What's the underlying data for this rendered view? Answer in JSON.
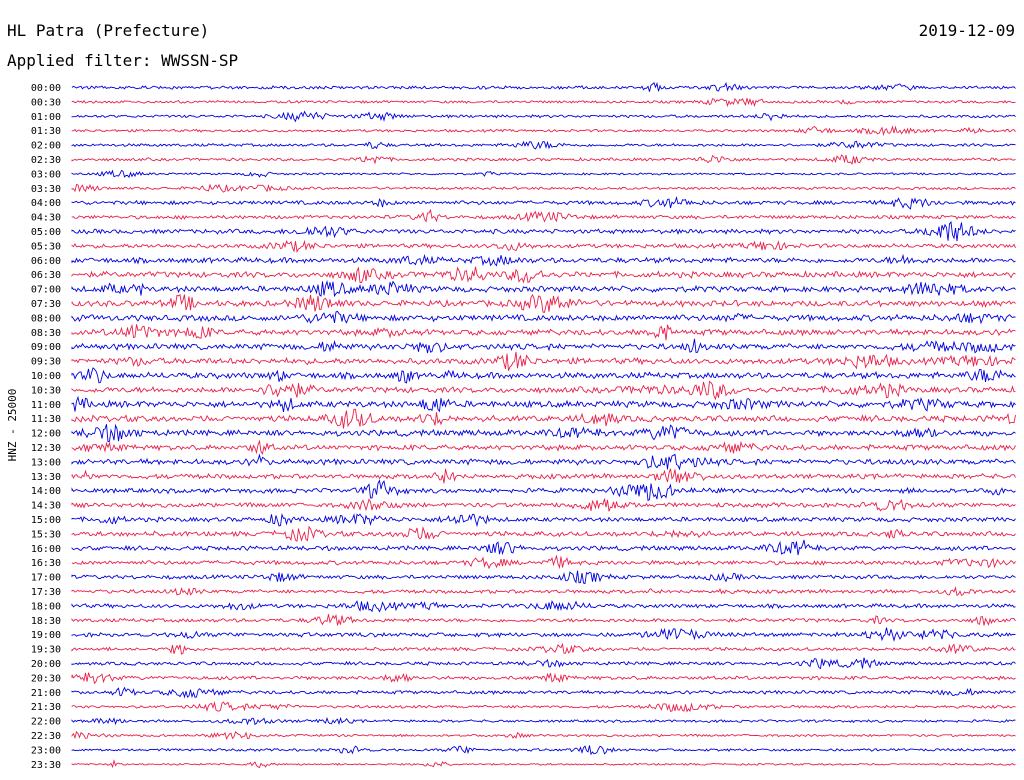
{
  "header": {
    "station": "HL Patra (Prefecture)",
    "date": "2019-12-09",
    "filter": "Applied filter: WWSSN-SP"
  },
  "chart_data": {
    "type": "line",
    "title": "HL Patra (Prefecture)",
    "subtitle": "Applied filter: WWSSN-SP",
    "ylabel": "HNZ - 25000",
    "xlabel": "",
    "trace_colors": [
      "#0000e0",
      "#e8204a"
    ],
    "rows": [
      {
        "label": "00:00",
        "activity": 0.35
      },
      {
        "label": "00:30",
        "activity": 0.25
      },
      {
        "label": "01:00",
        "activity": 0.3
      },
      {
        "label": "01:30",
        "activity": 0.25
      },
      {
        "label": "02:00",
        "activity": 0.3
      },
      {
        "label": "02:30",
        "activity": 0.3
      },
      {
        "label": "03:00",
        "activity": 0.15
      },
      {
        "label": "03:30",
        "activity": 0.25
      },
      {
        "label": "04:00",
        "activity": 0.5
      },
      {
        "label": "04:30",
        "activity": 0.45
      },
      {
        "label": "05:00",
        "activity": 0.6
      },
      {
        "label": "05:30",
        "activity": 0.55
      },
      {
        "label": "06:00",
        "activity": 0.75
      },
      {
        "label": "06:30",
        "activity": 0.85
      },
      {
        "label": "07:00",
        "activity": 0.85
      },
      {
        "label": "07:30",
        "activity": 0.85
      },
      {
        "label": "08:00",
        "activity": 0.9
      },
      {
        "label": "08:30",
        "activity": 0.85
      },
      {
        "label": "09:00",
        "activity": 0.85
      },
      {
        "label": "09:30",
        "activity": 0.9
      },
      {
        "label": "10:00",
        "activity": 0.9
      },
      {
        "label": "10:30",
        "activity": 0.85
      },
      {
        "label": "11:00",
        "activity": 0.95
      },
      {
        "label": "11:30",
        "activity": 0.9
      },
      {
        "label": "12:00",
        "activity": 0.85
      },
      {
        "label": "12:30",
        "activity": 0.75
      },
      {
        "label": "13:00",
        "activity": 0.8
      },
      {
        "label": "13:30",
        "activity": 0.65
      },
      {
        "label": "14:00",
        "activity": 0.65
      },
      {
        "label": "14:30",
        "activity": 0.6
      },
      {
        "label": "15:00",
        "activity": 0.6
      },
      {
        "label": "15:30",
        "activity": 0.65
      },
      {
        "label": "16:00",
        "activity": 0.6
      },
      {
        "label": "16:30",
        "activity": 0.55
      },
      {
        "label": "17:00",
        "activity": 0.5
      },
      {
        "label": "17:30",
        "activity": 0.45
      },
      {
        "label": "18:00",
        "activity": 0.5
      },
      {
        "label": "18:30",
        "activity": 0.45
      },
      {
        "label": "19:00",
        "activity": 0.55
      },
      {
        "label": "19:30",
        "activity": 0.4
      },
      {
        "label": "20:00",
        "activity": 0.4
      },
      {
        "label": "20:30",
        "activity": 0.45
      },
      {
        "label": "21:00",
        "activity": 0.4
      },
      {
        "label": "21:30",
        "activity": 0.3
      },
      {
        "label": "22:00",
        "activity": 0.25
      },
      {
        "label": "22:30",
        "activity": 0.2
      },
      {
        "label": "23:00",
        "activity": 0.25
      },
      {
        "label": "23:30",
        "activity": 0.1
      }
    ]
  }
}
